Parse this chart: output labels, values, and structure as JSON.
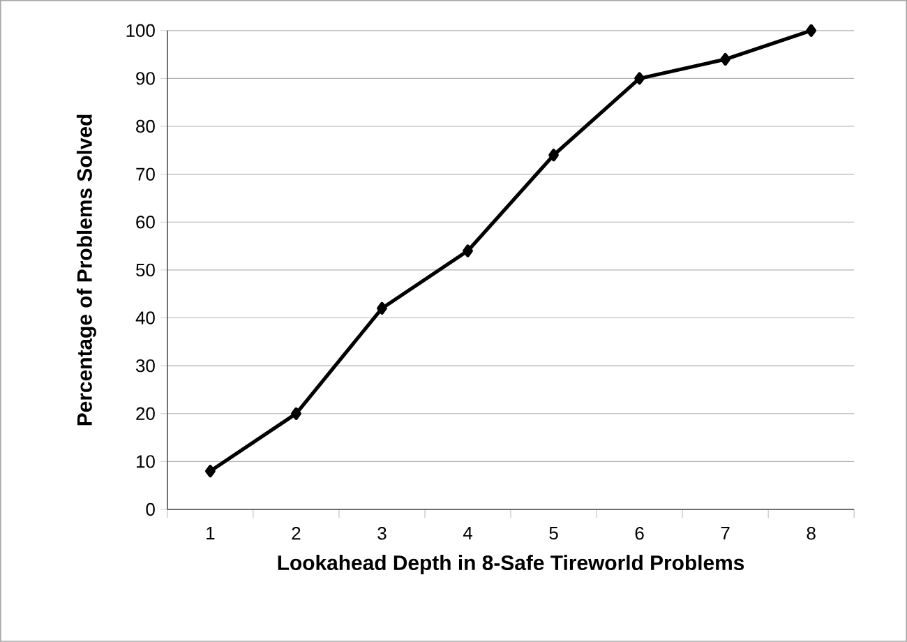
{
  "chart_data": {
    "type": "line",
    "xlabel": "Lookahead Depth in 8-Safe Tireworld Problems",
    "ylabel": "Percentage of Problems Solved",
    "categories": [
      "1",
      "2",
      "3",
      "4",
      "5",
      "6",
      "7",
      "8"
    ],
    "series": [
      {
        "color": "#000000",
        "values": [
          8,
          20,
          42,
          54,
          74,
          90,
          94,
          100
        ]
      }
    ],
    "ylim": [
      0,
      100
    ],
    "yticks": [
      0,
      10,
      20,
      30,
      40,
      50,
      60,
      70,
      80,
      90,
      100
    ],
    "grid": "y",
    "marker": "diamond",
    "line_style": "solid"
  }
}
